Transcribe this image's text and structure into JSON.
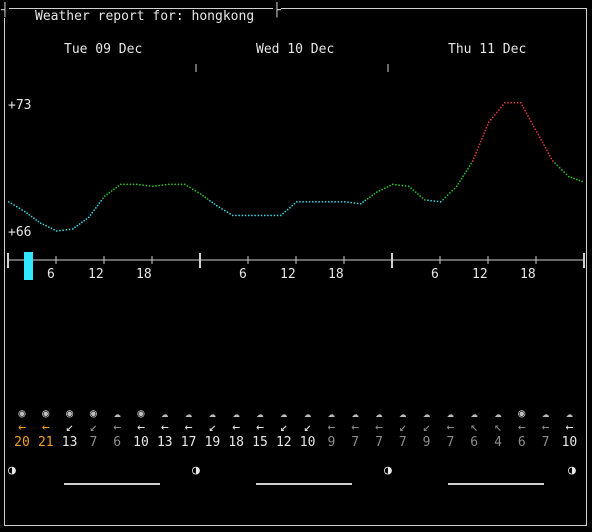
{
  "window": {
    "title": "Weather report for: hongkong"
  },
  "days": [
    "Tue 09 Dec",
    "Wed 10 Dec",
    "Thu 11 Dec"
  ],
  "y_labels": {
    "max": "+73",
    "min": "+66"
  },
  "hour_labels": [
    "6",
    "12",
    "18",
    "6",
    "12",
    "18",
    "6",
    "12",
    "18"
  ],
  "colors": {
    "cold": "#3ad7e6",
    "mild": "#27c627",
    "hot": "#e03a3a",
    "accent_wind": "#f0a020",
    "cursor": "#33e6ff"
  },
  "chart_data": {
    "type": "line",
    "title": "",
    "ylabel": "",
    "ylim": [
      66,
      73
    ],
    "x": [
      0,
      2,
      4,
      6,
      8,
      10,
      12,
      14,
      16,
      18,
      20,
      22,
      24,
      26,
      28,
      30,
      32,
      34,
      36,
      38,
      40,
      42,
      44,
      46,
      48,
      50,
      52,
      54,
      56,
      58,
      60,
      62,
      64,
      66,
      68,
      70,
      72
    ],
    "values": [
      67.9,
      67.4,
      66.8,
      66.4,
      66.5,
      67.1,
      68.2,
      68.8,
      68.8,
      68.7,
      68.8,
      68.8,
      68.3,
      67.7,
      67.2,
      67.2,
      67.2,
      67.2,
      67.9,
      67.9,
      67.9,
      67.9,
      67.8,
      68.4,
      68.8,
      68.7,
      68.0,
      67.9,
      68.7,
      70.0,
      72.0,
      73.0,
      73.0,
      71.5,
      70.0,
      69.2,
      68.9
    ]
  },
  "icons": [
    "sun-icon",
    "sun-icon",
    "sun-icon",
    "sun-icon",
    "cloud-icon",
    "sun-icon",
    "cloud-icon",
    "cloud-icon",
    "cloud-icon",
    "cloud-icon",
    "cloud-icon",
    "cloud-icon",
    "cloud-icon",
    "cloud-icon",
    "cloud-icon",
    "cloud-icon",
    "cloud-icon",
    "cloud-icon",
    "cloud-icon",
    "cloud-icon",
    "cloud-icon",
    "sun-icon",
    "cloud-icon",
    "cloud-icon"
  ],
  "wind_arrows": [
    "←",
    "←",
    "↙",
    "↙",
    "←",
    "←",
    "←",
    "←",
    "↙",
    "←",
    "←",
    "↙",
    "↙",
    "←",
    "←",
    "←",
    "↙",
    "↙",
    "←",
    "↖",
    "↖",
    "←",
    "←",
    "←"
  ],
  "wind_speeds": [
    "20",
    "21",
    "13",
    "7",
    "6",
    "10",
    "13",
    "17",
    "19",
    "18",
    "15",
    "12",
    "10",
    "9",
    "7",
    "7",
    "7",
    "9",
    "7",
    "6",
    "4",
    "6",
    "7",
    "10"
  ],
  "moon_phase": [
    "◑",
    "◑",
    "◑",
    "◑"
  ]
}
